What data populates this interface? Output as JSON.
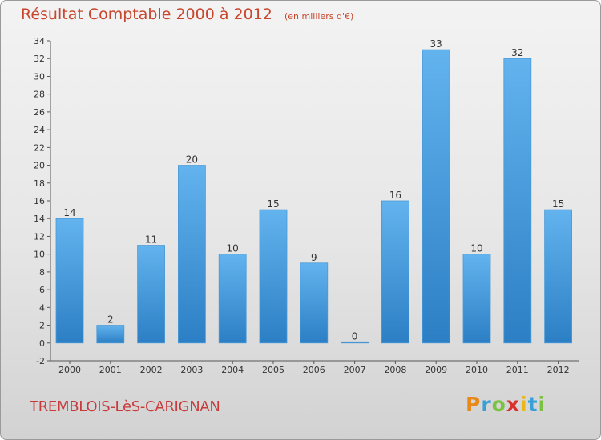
{
  "chart_data": {
    "type": "bar",
    "title": "Résultat Comptable 2000 à 2012",
    "subtitle": "(en milliers d'€)",
    "categories": [
      "2000",
      "2001",
      "2002",
      "2003",
      "2004",
      "2005",
      "2006",
      "2007",
      "2008",
      "2009",
      "2010",
      "2011",
      "2012"
    ],
    "values": [
      14,
      2,
      11,
      20,
      10,
      15,
      9,
      0,
      16,
      33,
      10,
      32,
      15
    ],
    "ylim": [
      -2,
      34
    ],
    "yticks": [
      -2,
      0,
      2,
      4,
      6,
      8,
      10,
      12,
      14,
      16,
      18,
      20,
      22,
      24,
      26,
      28,
      30,
      32,
      34
    ],
    "grid": false,
    "xlabel": "",
    "ylabel": ""
  },
  "commune": "TREMBLOIS-LèS-CARIGNAN",
  "logo": {
    "letters": [
      "P",
      "r",
      "o",
      "x",
      "i",
      "t",
      "i"
    ],
    "colors": [
      "#e88a1a",
      "#3aa0d8",
      "#7cc242",
      "#d8322e",
      "#e8b81a",
      "#3aa0d8",
      "#7cc242"
    ]
  },
  "colors": {
    "title": "#c8462e",
    "bar_top": "#62b3ee",
    "bar_bottom": "#2c7fc4",
    "axis": "#555555"
  }
}
